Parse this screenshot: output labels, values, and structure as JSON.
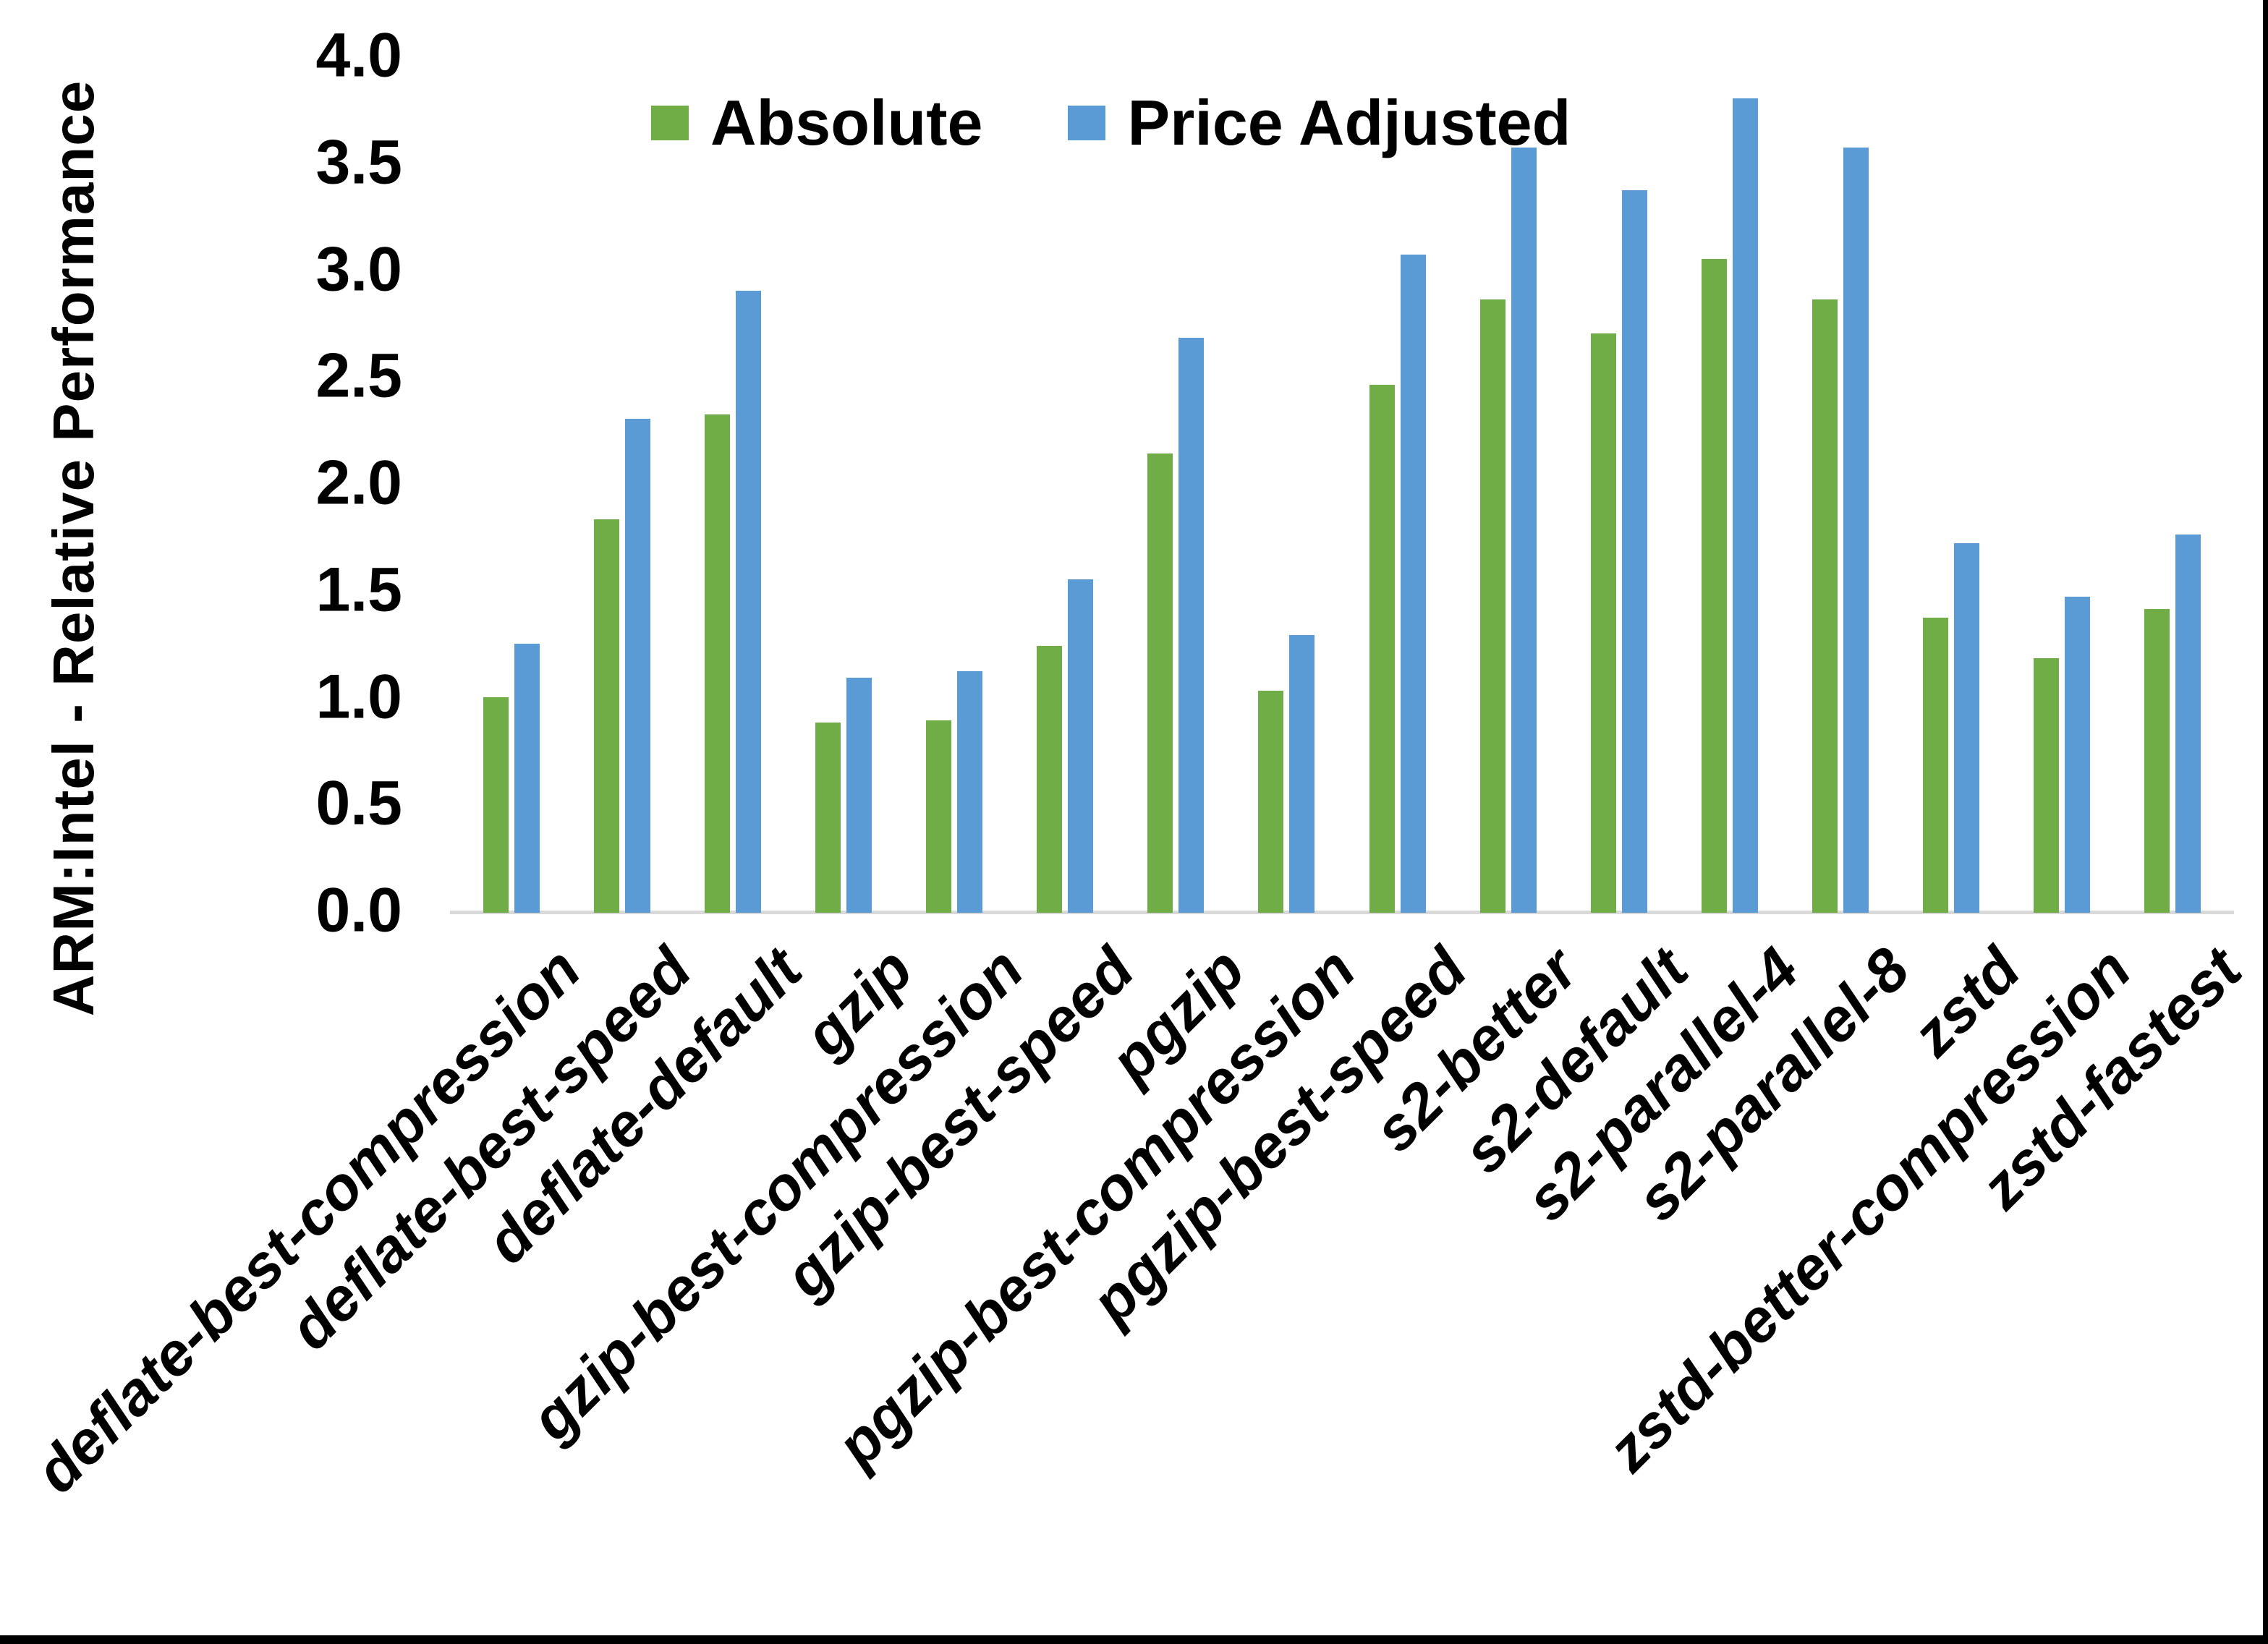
{
  "frame": {
    "background": "#FFFFFF",
    "edge_color": "#000000"
  },
  "legend": {
    "items": [
      {
        "label": "Absolute",
        "color": "#70AD47"
      },
      {
        "label": "Price Adjusted",
        "color": "#5B9BD5"
      }
    ]
  },
  "chart_data": {
    "type": "bar",
    "title": "",
    "xlabel": "",
    "ylabel": "ARM:Intel - Relative Performance",
    "ylim": [
      0,
      4
    ],
    "ytick_step": 0.5,
    "ytick_labels": [
      "0.0",
      "0.5",
      "1.0",
      "1.5",
      "2.0",
      "2.5",
      "3.0",
      "3.5",
      "4.0"
    ],
    "grid": false,
    "legend_position": "top-center",
    "axis_line_color": "#D9D9D9",
    "text_color": "#000000",
    "categories": [
      "deflate-best-compression",
      "deflate-best-speed",
      "deflate-default",
      "gzip",
      "gzip-best-compression",
      "gzip-best-speed",
      "pgzip",
      "pgzip-best-compression",
      "pgzip-best-speed",
      "s2-better",
      "s2-default",
      "s2-parallel-4",
      "s2-parallel-8",
      "zstd",
      "zstd-better-compression",
      "zstd-fastest"
    ],
    "series": [
      {
        "name": "Absolute",
        "color": "#70AD47",
        "values": [
          1.01,
          1.84,
          2.33,
          0.89,
          0.9,
          1.25,
          2.15,
          1.04,
          2.47,
          2.87,
          2.71,
          3.06,
          2.87,
          1.38,
          1.19,
          1.42
        ]
      },
      {
        "name": "Price Adjusted",
        "color": "#5B9BD5",
        "values": [
          1.26,
          2.31,
          2.91,
          1.1,
          1.13,
          1.56,
          2.69,
          1.3,
          3.08,
          3.58,
          3.38,
          3.81,
          3.58,
          1.73,
          1.48,
          1.77
        ]
      }
    ]
  }
}
